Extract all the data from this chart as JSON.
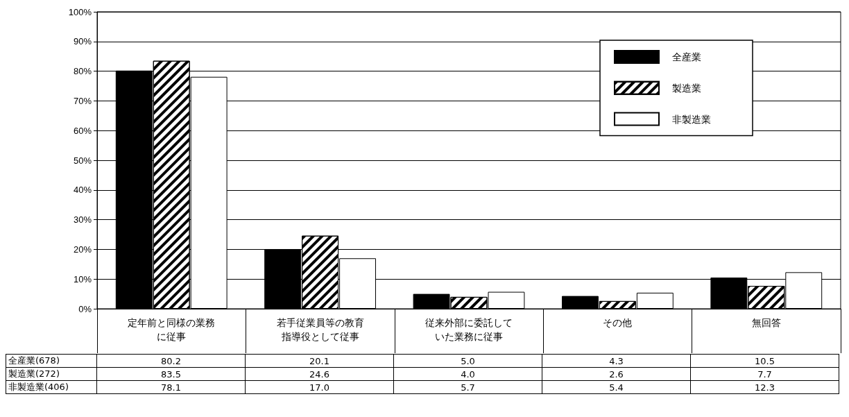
{
  "chart_data": {
    "type": "bar",
    "categories": [
      "定年前と同様の業務に従事",
      "若手従業員等の教育指導役として従事",
      "従来外部に委託していた業務に従事",
      "その他",
      "無回答"
    ],
    "series": [
      {
        "name": "全産業",
        "color": "#000000",
        "values": [
          80.2,
          20.1,
          5.0,
          4.3,
          10.5
        ],
        "value_labels": [
          "80.2",
          "20.1",
          "5.0",
          "4.3",
          "10.5"
        ]
      },
      {
        "name": "製造業",
        "color": "#ffffff",
        "values": [
          83.5,
          24.6,
          4.0,
          2.6,
          7.7
        ],
        "value_labels": [
          "83.5",
          "24.6",
          "4.0",
          "2.6",
          "7.7"
        ]
      },
      {
        "name": "非製造業",
        "color": "#ffffff",
        "values": [
          78.1,
          17.0,
          5.7,
          5.4,
          12.3
        ],
        "value_labels": [
          "78.1",
          "17.0",
          "5.7",
          "5.4",
          "12.3"
        ]
      }
    ],
    "ylim": [
      0,
      100
    ],
    "yticks": [
      {
        "value": 0,
        "label": "0%"
      },
      {
        "value": 10,
        "label": "10%"
      },
      {
        "value": 20,
        "label": "20%"
      },
      {
        "value": 30,
        "label": "30%"
      },
      {
        "value": 40,
        "label": "40%"
      },
      {
        "value": 50,
        "label": "50%"
      },
      {
        "value": 60,
        "label": "60%"
      },
      {
        "value": 70,
        "label": "70%"
      },
      {
        "value": 80,
        "label": "80%"
      },
      {
        "value": 90,
        "label": "90%"
      },
      {
        "value": 100,
        "label": "100%"
      }
    ],
    "annotations": [
      "全産業(678)",
      "製造業(272)",
      "非製造業(406)"
    ],
    "grid": "y",
    "legend": "top right"
  }
}
